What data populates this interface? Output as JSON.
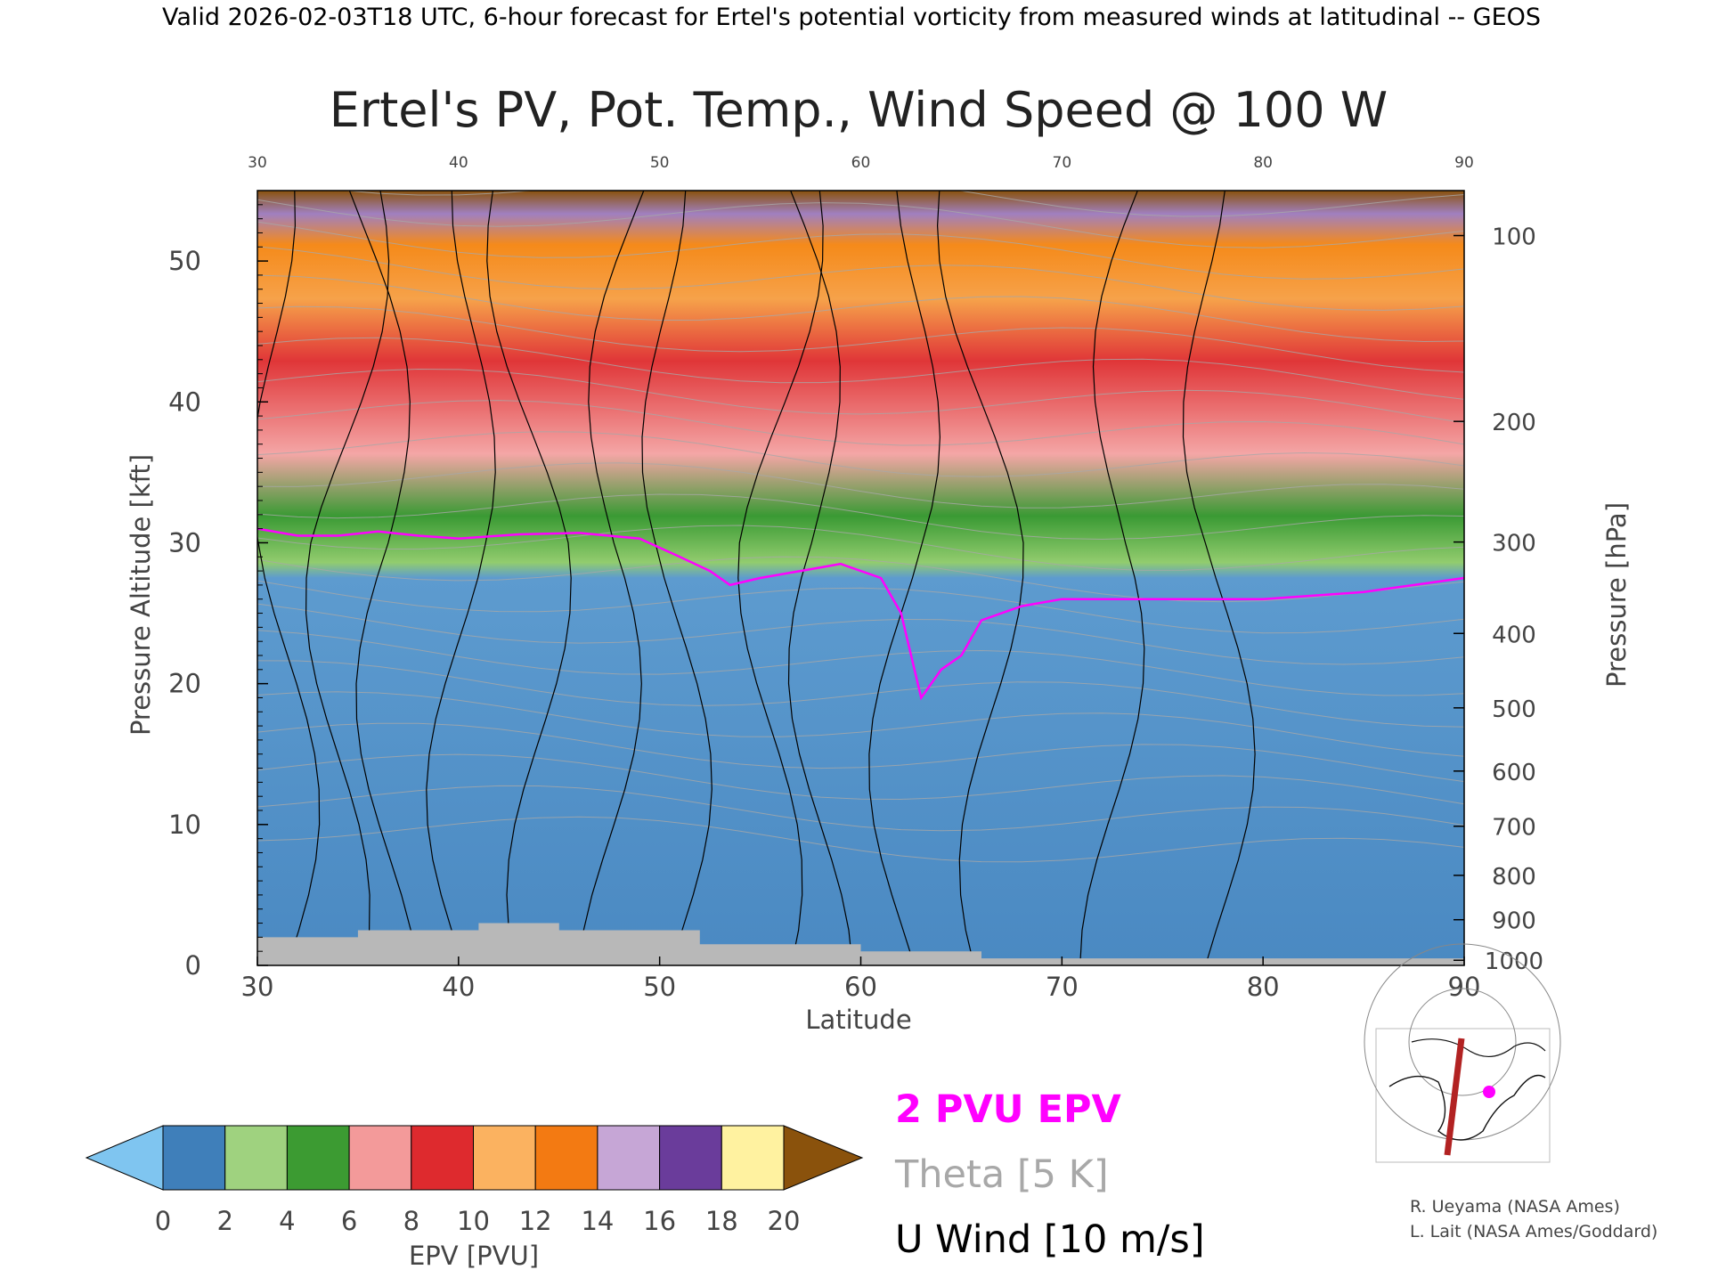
{
  "header_text": "Valid 2026-02-03T18 UTC, 6-hour forecast for Ertel's potential vorticity from measured winds at latitudinal -- GEOS",
  "chart_data": {
    "type": "heatmap",
    "title": "Ertel's PV, Pot. Temp., Wind Speed @ 100 W",
    "xlabel": "Latitude",
    "ylabel": "Pressure Altitude [kft]",
    "y2label": "Pressure [hPa]",
    "xlim": [
      30,
      90
    ],
    "ylim": [
      0,
      55
    ],
    "x_ticks": [
      "30",
      "40",
      "50",
      "60",
      "70",
      "80",
      "90"
    ],
    "y_ticks": [
      "0",
      "10",
      "20",
      "30",
      "40",
      "50"
    ],
    "pressure_ticks": [
      {
        "label": "100",
        "hpa": 100
      },
      {
        "label": "200",
        "hpa": 200
      },
      {
        "label": "300",
        "hpa": 300
      },
      {
        "label": "400",
        "hpa": 400
      },
      {
        "label": "500",
        "hpa": 500
      },
      {
        "label": "600",
        "hpa": 600
      },
      {
        "label": "700",
        "hpa": 700
      },
      {
        "label": "800",
        "hpa": 800
      },
      {
        "label": "900",
        "hpa": 900
      },
      {
        "label": "1000",
        "hpa": 1000
      }
    ],
    "tropopause_2pvu_kft": [
      [
        30,
        31
      ],
      [
        32,
        30.5
      ],
      [
        34,
        30.5
      ],
      [
        36,
        30.8
      ],
      [
        38,
        30.5
      ],
      [
        40,
        30.3
      ],
      [
        43,
        30.6
      ],
      [
        46,
        30.7
      ],
      [
        49,
        30.3
      ],
      [
        51,
        29
      ],
      [
        52.5,
        28
      ],
      [
        53.5,
        27
      ],
      [
        55,
        27.5
      ],
      [
        57,
        28
      ],
      [
        59,
        28.5
      ],
      [
        61,
        27.5
      ],
      [
        62,
        25
      ],
      [
        63,
        19
      ],
      [
        64,
        21
      ],
      [
        65,
        22
      ],
      [
        66,
        24.5
      ],
      [
        68,
        25.5
      ],
      [
        70,
        26
      ],
      [
        75,
        26
      ],
      [
        80,
        26
      ],
      [
        85,
        26.5
      ],
      [
        90,
        27.5
      ]
    ],
    "colorbar": {
      "label": "EPV [PVU]",
      "tick_labels": [
        "0",
        "2",
        "4",
        "6",
        "8",
        "10",
        "12",
        "14",
        "16",
        "18",
        "20"
      ],
      "colors": [
        "#7fc5f0",
        "#3f7fba",
        "#9fd27f",
        "#3c9b32",
        "#f39a9a",
        "#de2a2e",
        "#fbb260",
        "#f37a12",
        "#c6a6d6",
        "#6a3c9b",
        "#fff2a0",
        "#8a520c"
      ]
    },
    "legend": [
      {
        "label": "2 PVU EPV",
        "color": "#ff00ff"
      },
      {
        "label": "Theta [5 K]",
        "color": "#a8a8a8"
      },
      {
        "label": "U Wind [10 m/s]",
        "color": "#000000"
      }
    ]
  },
  "credits": [
    "R. Ueyama (NASA Ames)",
    "L. Lait (NASA Ames/Goddard)"
  ]
}
